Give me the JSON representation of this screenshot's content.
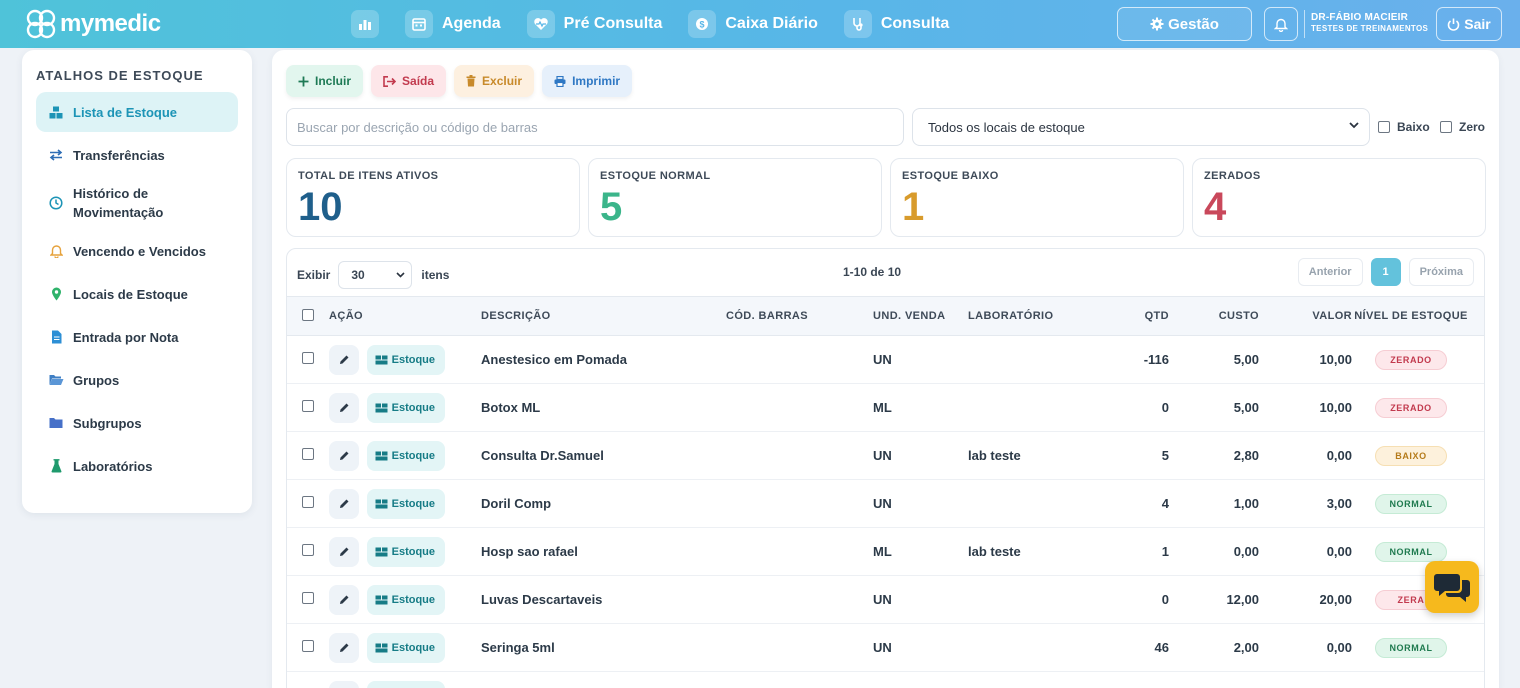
{
  "brand": {
    "name": "mymedic"
  },
  "nav": {
    "items": [
      {
        "label": "",
        "icon": "chart-bar-icon"
      },
      {
        "label": "Agenda",
        "icon": "calendar-icon"
      },
      {
        "label": "Pré Consulta",
        "icon": "heartbeat-icon"
      },
      {
        "label": "Caixa Diário",
        "icon": "cash-icon"
      },
      {
        "label": "Consulta",
        "icon": "stethoscope-icon"
      }
    ],
    "gestao_label": "Gestão",
    "user_name": "DR-FÁBIO MACIEIR",
    "user_sub": "TESTES DE TREINAMENTOS",
    "sair_label": "Sair"
  },
  "sidebar": {
    "title": "ATALHOS DE ESTOQUE",
    "items": [
      {
        "label": "Lista de Estoque",
        "icon": "boxes-icon",
        "active": true
      },
      {
        "label": "Transferências",
        "icon": "transfer-icon"
      },
      {
        "label": "Histórico de Movimentação",
        "icon": "clock-icon"
      },
      {
        "label": "Vencendo e Vencidos",
        "icon": "bell-icon"
      },
      {
        "label": "Locais de Estoque",
        "icon": "map-pin-icon"
      },
      {
        "label": "Entrada por Nota",
        "icon": "file-invoice-icon"
      },
      {
        "label": "Grupos",
        "icon": "folder-open-icon"
      },
      {
        "label": "Subgrupos",
        "icon": "folder-icon"
      },
      {
        "label": "Laboratórios",
        "icon": "flask-icon"
      }
    ]
  },
  "toolbar": {
    "incluir": "Incluir",
    "saida": "Saída",
    "excluir": "Excluir",
    "imprimir": "Imprimir"
  },
  "filters": {
    "search_placeholder": "Buscar por descrição ou código de barras",
    "local_selected": "Todos os locais de estoque",
    "baixo_label": "Baixo",
    "zero_label": "Zero"
  },
  "cards": [
    {
      "label": "TOTAL DE ITENS ATIVOS",
      "value": "10",
      "color": "#1f5f8b"
    },
    {
      "label": "ESTOQUE NORMAL",
      "value": "5",
      "color": "#3bb58a"
    },
    {
      "label": "ESTOQUE BAIXO",
      "value": "1",
      "color": "#d89b2c"
    },
    {
      "label": "ZERADOS",
      "value": "4",
      "color": "#c9485b"
    }
  ],
  "table": {
    "exibir_label": "Exibir",
    "page_size": "30",
    "itens_label": "itens",
    "page_info": "1-10 de 10",
    "prev_label": "Anterior",
    "current_page": "1",
    "next_label": "Próxima",
    "headers": {
      "acao": "AÇÃO",
      "descricao": "DESCRIÇÃO",
      "cod_barras": "CÓD. BARRAS",
      "und_venda": "UND. VENDA",
      "laboratorio": "LABORATÓRIO",
      "qtd": "QTD",
      "custo": "CUSTO",
      "valor": "VALOR",
      "nivel": "NÍVEL DE ESTOQUE"
    },
    "estoque_label": "Estoque",
    "rows": [
      {
        "descricao": "Anestesico em Pomada",
        "cod": "",
        "und": "UN",
        "lab": "",
        "qtd": "-116",
        "custo": "5,00",
        "valor": "10,00",
        "nivel": "ZERADO",
        "nivel_class": "b-zerado"
      },
      {
        "descricao": "Botox ML",
        "cod": "",
        "und": "ML",
        "lab": "",
        "qtd": "0",
        "custo": "5,00",
        "valor": "10,00",
        "nivel": "ZERADO",
        "nivel_class": "b-zerado"
      },
      {
        "descricao": "Consulta Dr.Samuel",
        "cod": "",
        "und": "UN",
        "lab": "lab teste",
        "qtd": "5",
        "custo": "2,80",
        "valor": "0,00",
        "nivel": "BAIXO",
        "nivel_class": "b-baixo"
      },
      {
        "descricao": "Doril Comp",
        "cod": "",
        "und": "UN",
        "lab": "",
        "qtd": "4",
        "custo": "1,00",
        "valor": "3,00",
        "nivel": "NORMAL",
        "nivel_class": "b-normal"
      },
      {
        "descricao": "Hosp sao rafael",
        "cod": "",
        "und": "ML",
        "lab": "lab teste",
        "qtd": "1",
        "custo": "0,00",
        "valor": "0,00",
        "nivel": "NORMAL",
        "nivel_class": "b-normal"
      },
      {
        "descricao": "Luvas Descartaveis",
        "cod": "",
        "und": "UN",
        "lab": "",
        "qtd": "0",
        "custo": "12,00",
        "valor": "20,00",
        "nivel": "ZERA",
        "nivel_class": "b-zerado"
      },
      {
        "descricao": "Seringa 5ml",
        "cod": "",
        "und": "UN",
        "lab": "",
        "qtd": "46",
        "custo": "2,00",
        "valor": "0,00",
        "nivel": "NORMAL",
        "nivel_class": "b-normal"
      },
      {
        "descricao": "",
        "cod": "",
        "und": "",
        "lab": "",
        "qtd": "",
        "custo": "",
        "valor": "",
        "nivel": "",
        "nivel_class": "b-normal"
      }
    ]
  },
  "chat": {
    "icon": "chat-bubbles-icon"
  }
}
